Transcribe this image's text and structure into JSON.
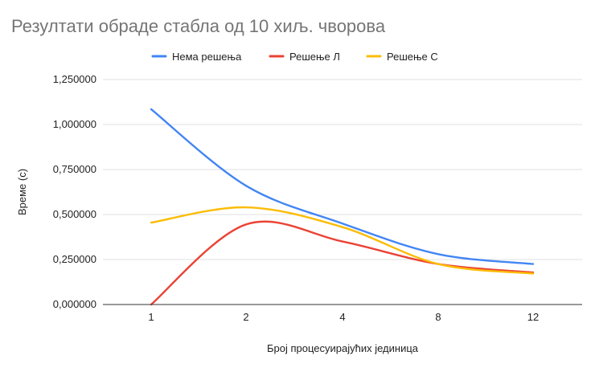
{
  "chart_data": {
    "type": "line",
    "title": "Резултати обраде стабла од 10 хиљ. чворова",
    "xlabel": "Број процесуирајућих јединица",
    "ylabel": "Време (с)",
    "categories": [
      "1",
      "2",
      "4",
      "8",
      "12"
    ],
    "ylim": [
      0,
      1.25
    ],
    "yticks": [
      0,
      0.25,
      0.5,
      0.75,
      1.0,
      1.25
    ],
    "ytick_labels": [
      "0,000000",
      "0,250000",
      "0,500000",
      "0,750000",
      "1,000000",
      "1,250000"
    ],
    "grid": true,
    "legend_position": "top",
    "smooth": true,
    "series": [
      {
        "name": "Нема решења",
        "color": "#4285F4",
        "values": [
          1.085,
          0.66,
          0.45,
          0.28,
          0.225
        ]
      },
      {
        "name": "Решење Л",
        "color": "#EA4335",
        "values": [
          0.0,
          0.445,
          0.35,
          0.225,
          0.178
        ]
      },
      {
        "name": "Решење С",
        "color": "#FBBC04",
        "values": [
          0.455,
          0.54,
          0.43,
          0.225,
          0.172
        ]
      }
    ]
  }
}
